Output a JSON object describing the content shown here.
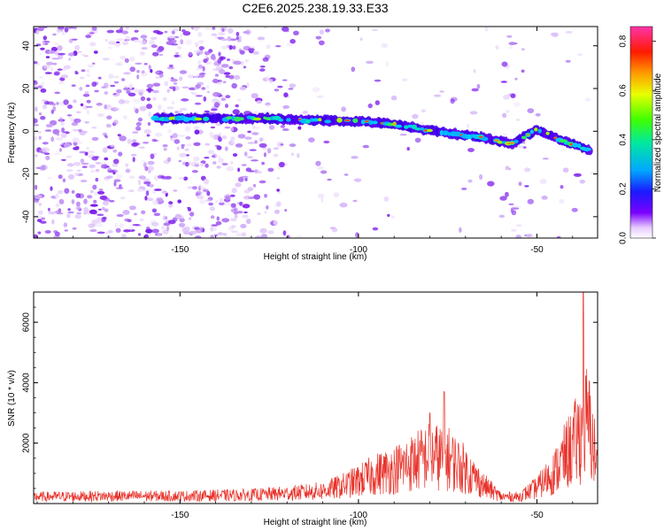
{
  "title": "C2E6.2025.238.19.33.E33",
  "chart_data": [
    {
      "type": "heatmap",
      "xlabel": "Height of straight line (km)",
      "ylabel": "Frequency (Hz)",
      "xlim": [
        -191,
        -33
      ],
      "ylim": [
        -50,
        49
      ],
      "xticks": [
        -150,
        -100,
        -50
      ],
      "yticks": [
        -40,
        -20,
        0,
        20,
        40
      ],
      "track": {
        "x": [
          -157,
          -145,
          -135,
          -125,
          -115,
          -105,
          -95,
          -85,
          -75,
          -65,
          -57,
          -50,
          -45,
          -40,
          -35
        ],
        "y": [
          6,
          6,
          6,
          6,
          5,
          5,
          4,
          2,
          -1,
          -3,
          -6,
          1,
          -3,
          -6,
          -9
        ]
      },
      "colorbar": {
        "label": "Normalized spectral amplitude",
        "ticks": [
          0.0,
          0.2,
          0.4,
          0.6,
          0.8
        ],
        "tick_labels": [
          "0.0",
          "0.2",
          "0.4",
          "0.6",
          "0.8"
        ],
        "range": [
          0,
          0.86
        ]
      }
    },
    {
      "type": "line",
      "xlabel": "Height of straight line (km)",
      "ylabel": "SNR (10 * v/v)",
      "xlim": [
        -191,
        -33
      ],
      "ylim": [
        0,
        7000
      ],
      "xticks": [
        -150,
        -100,
        -50
      ],
      "yticks": [
        2000,
        4000,
        6000
      ],
      "color": "#e8322a",
      "envelope": {
        "x": [
          -191,
          -170,
          -150,
          -130,
          -120,
          -110,
          -105,
          -100,
          -95,
          -90,
          -85,
          -80,
          -75,
          -72,
          -70,
          -65,
          -60,
          -55,
          -50,
          -45,
          -42,
          -40,
          -38,
          -36,
          -35,
          -33
        ],
        "y": [
          300,
          330,
          330,
          380,
          450,
          560,
          750,
          1000,
          1300,
          1500,
          1800,
          2100,
          2000,
          1700,
          1500,
          800,
          300,
          300,
          700,
          1400,
          2100,
          2500,
          3000,
          3600,
          3200,
          1500
        ]
      },
      "peaks": [
        {
          "x": -80,
          "y": 3000
        },
        {
          "x": -76,
          "y": 3700
        },
        {
          "x": -37,
          "y": 7000
        }
      ]
    }
  ]
}
